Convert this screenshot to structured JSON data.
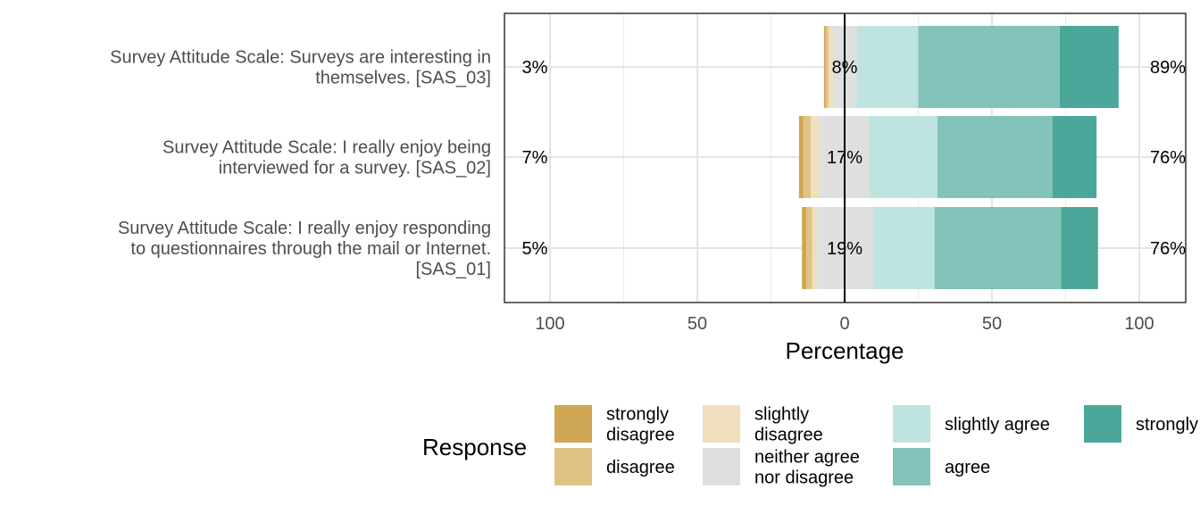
{
  "chart_data": {
    "type": "bar",
    "orientation": "horizontal-diverging",
    "xlabel": "Percentage",
    "ylabel": "",
    "xlim": [
      -115,
      115
    ],
    "x_ticks": [
      -100,
      -50,
      0,
      50,
      100
    ],
    "x_tick_labels": [
      "100",
      "50",
      "0",
      "50",
      "100"
    ],
    "grid": true,
    "legend": {
      "title": "Response",
      "position": "bottom",
      "entries": [
        {
          "label": "strongly disagree",
          "color": "#CFA653"
        },
        {
          "label": "disagree",
          "color": "#DFC384"
        },
        {
          "label": "slightly disagree",
          "color": "#EFDFBF"
        },
        {
          "label": "neither agree nor disagree",
          "color": "#DFDFDF"
        },
        {
          "label": "slightly agree",
          "color": "#BFE3DF"
        },
        {
          "label": "agree",
          "color": "#83C3B9"
        },
        {
          "label": "strongly agree",
          "color": "#4AA799"
        }
      ]
    },
    "categories": [
      "Survey Attitude Scale: Surveys are interesting in themselves. [SAS_03]",
      "Survey Attitude Scale: I really enjoy being interviewed for a survey. [SAS_02]",
      "Survey Attitude Scale: I really enjoy responding to questionnaires through the mail or Internet. [SAS_01]"
    ],
    "category_lines": [
      [
        "Survey Attitude Scale: Surveys are interesting in",
        "themselves. [SAS_03]"
      ],
      [
        "Survey Attitude Scale: I really enjoy being",
        "interviewed for a survey. [SAS_02]"
      ],
      [
        "Survey Attitude Scale: I really enjoy responding",
        "to questionnaires through the mail or Internet.",
        "[SAS_01]"
      ]
    ],
    "series": [
      {
        "name": "strongly disagree",
        "values": [
          0.5,
          1.5,
          1.5
        ]
      },
      {
        "name": "disagree",
        "values": [
          1.0,
          2.5,
          2.0
        ]
      },
      {
        "name": "slightly disagree",
        "values": [
          1.5,
          3.0,
          1.5
        ]
      },
      {
        "name": "neither agree nor disagree",
        "values": [
          8,
          17,
          19
        ]
      },
      {
        "name": "slightly agree",
        "values": [
          21,
          23,
          21
        ]
      },
      {
        "name": "agree",
        "values": [
          48,
          39,
          43
        ]
      },
      {
        "name": "strongly agree",
        "values": [
          20,
          15,
          12.5
        ]
      }
    ],
    "low_labels": [
      "3%",
      "7%",
      "5%"
    ],
    "neutral_labels": [
      "8%",
      "17%",
      "19%"
    ],
    "high_labels": [
      "89%",
      "76%",
      "76%"
    ]
  }
}
